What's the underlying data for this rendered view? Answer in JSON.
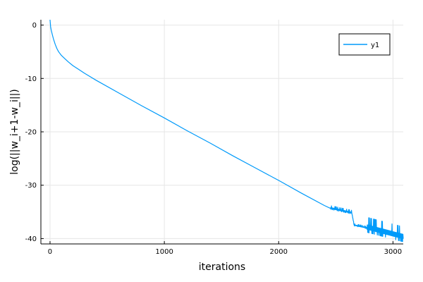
{
  "chart_data": {
    "type": "line",
    "title": "",
    "xlabel": "iterations",
    "ylabel": "log(||w_i+1-w_i||)",
    "xlim": [
      -80,
      3090
    ],
    "ylim": [
      -41,
      1
    ],
    "xticks": [
      0,
      1000,
      2000,
      3000
    ],
    "xtick_labels": [
      "0",
      "1000",
      "2000",
      "3000"
    ],
    "yticks": [
      0,
      -10,
      -20,
      -30,
      -40
    ],
    "ytick_labels": [
      "0",
      "-10",
      "-20",
      "-30",
      "-40"
    ],
    "grid": true,
    "legend_position": "top-right",
    "series": [
      {
        "name": "y1",
        "color": "#009AFA",
        "x": [
          0,
          5,
          10,
          20,
          30,
          45,
          60,
          75,
          100,
          130,
          160,
          200,
          250,
          300,
          400,
          600,
          800,
          1000,
          1200,
          1400,
          1600,
          1800,
          2000,
          2200,
          2400,
          2450
        ],
        "y": [
          1.0,
          -0.3,
          -0.9,
          -1.8,
          -2.6,
          -3.6,
          -4.4,
          -5.0,
          -5.7,
          -6.3,
          -6.9,
          -7.6,
          -8.3,
          -9.0,
          -10.3,
          -12.7,
          -15.1,
          -17.4,
          -19.8,
          -22.1,
          -24.5,
          -26.8,
          -29.1,
          -31.5,
          -33.8,
          -34.3
        ],
        "noisy_tail": {
          "x_start": 2450,
          "x_end": 3090,
          "segments": [
            {
              "x_from": 2450,
              "x_to": 2640,
              "y_base_from": -34.3,
              "y_base_to": -35.2,
              "amplitude": 0.5
            },
            {
              "x_from": 2640,
              "x_to": 2660,
              "y_base_from": -35.2,
              "y_base_to": -37.5,
              "amplitude": 0.2
            },
            {
              "x_from": 2660,
              "x_to": 2770,
              "y_base_from": -37.5,
              "y_base_to": -38.0,
              "amplitude": 0.3
            },
            {
              "x_from": 2770,
              "x_to": 3090,
              "y_base_from": -38.0,
              "y_base_to": -39.8,
              "amplitude": 2.0
            }
          ]
        }
      }
    ]
  }
}
